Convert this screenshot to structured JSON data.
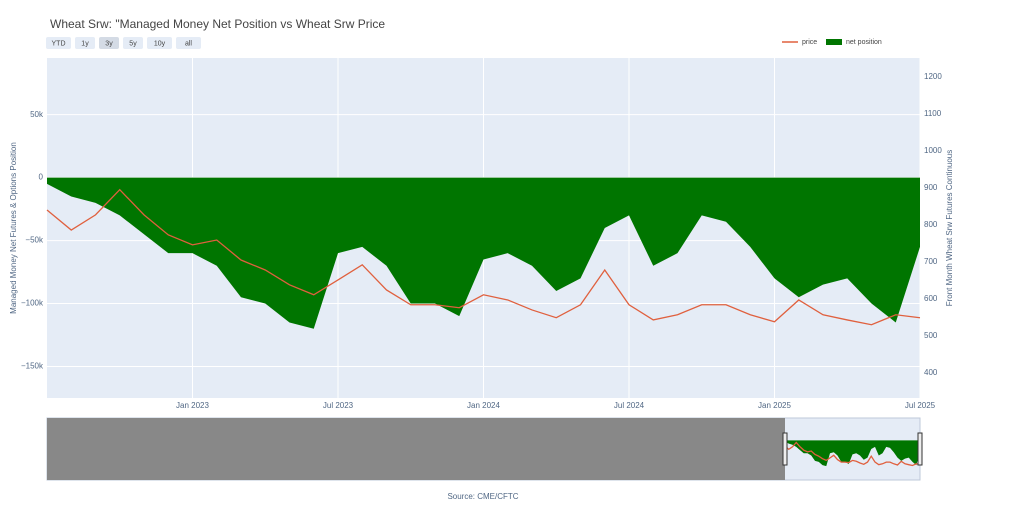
{
  "chart_data": {
    "type": "area-line",
    "title": "Wheat Srw: \"Managed Money Net Position vs Wheat Srw Price",
    "y_label": "Managed Money Net Futures & Options Position",
    "y2_label": "Front Month Wheat Srw Futures Continuous",
    "source": "Source: CME/CFTC",
    "range_buttons": [
      "YTD",
      "1y",
      "3y",
      "5y",
      "10y",
      "all"
    ],
    "selected_button": "3y",
    "x": [
      "2022-07",
      "2022-08",
      "2022-09",
      "2022-10",
      "2022-11",
      "2022-12",
      "2023-01",
      "2023-02",
      "2023-03",
      "2023-04",
      "2023-05",
      "2023-06",
      "2023-07",
      "2023-08",
      "2023-09",
      "2023-10",
      "2023-11",
      "2023-12",
      "2024-01",
      "2024-02",
      "2024-03",
      "2024-04",
      "2024-05",
      "2024-06",
      "2024-07",
      "2024-08",
      "2024-09",
      "2024-10",
      "2024-11",
      "2024-12",
      "2025-01",
      "2025-02",
      "2025-03",
      "2025-04",
      "2025-05",
      "2025-06",
      "2025-07"
    ],
    "xlim": [
      "2022-07",
      "2025-07"
    ],
    "xticks": [
      {
        "value": "2023-01",
        "label": "Jan 2023"
      },
      {
        "value": "2023-07",
        "label": "Jul 2023"
      },
      {
        "value": "2024-01",
        "label": "Jan 2024"
      },
      {
        "value": "2024-07",
        "label": "Jul 2024"
      },
      {
        "value": "2025-01",
        "label": "Jan 2025"
      },
      {
        "value": "2025-07",
        "label": "Jul 2025"
      }
    ],
    "ylim": [
      -175000,
      95000
    ],
    "yticks": [
      {
        "value": 50000,
        "label": "50k"
      },
      0,
      {
        "value": -50000,
        "label": "−50k"
      },
      {
        "value": -100000,
        "label": "−100k"
      },
      {
        "value": -150000,
        "label": "−150k"
      }
    ],
    "y2lim": [
      332,
      1251
    ],
    "y2ticks": [
      400,
      500,
      600,
      700,
      800,
      900,
      1000,
      1100,
      1200
    ],
    "grid": true,
    "legend": "top-right",
    "series": [
      {
        "name": "price",
        "color": "#e0603e",
        "axis": "y2",
        "values": [
          840,
          786,
          827,
          895,
          827,
          773,
          746,
          759,
          705,
          678,
          638,
          611,
          651,
          692,
          624,
          584,
          584,
          576,
          611,
          597,
          570,
          549,
          584,
          678,
          584,
          543,
          557,
          584,
          584,
          557,
          538,
          597,
          557,
          543,
          530,
          557,
          549
        ]
      },
      {
        "name": "net position",
        "color": "#007500",
        "values": [
          -5000,
          -15000,
          -20000,
          -30000,
          -45000,
          -60000,
          -60000,
          -70000,
          -95000,
          -100000,
          -115000,
          -120000,
          -60000,
          -55000,
          -70000,
          -100000,
          -100000,
          -110000,
          -65000,
          -60000,
          -70000,
          -90000,
          -80000,
          -40000,
          -30000,
          -70000,
          -60000,
          -30000,
          -35000,
          -55000,
          -80000,
          -95000,
          -85000,
          -80000,
          -100000,
          -115000,
          -55000
        ]
      }
    ]
  }
}
